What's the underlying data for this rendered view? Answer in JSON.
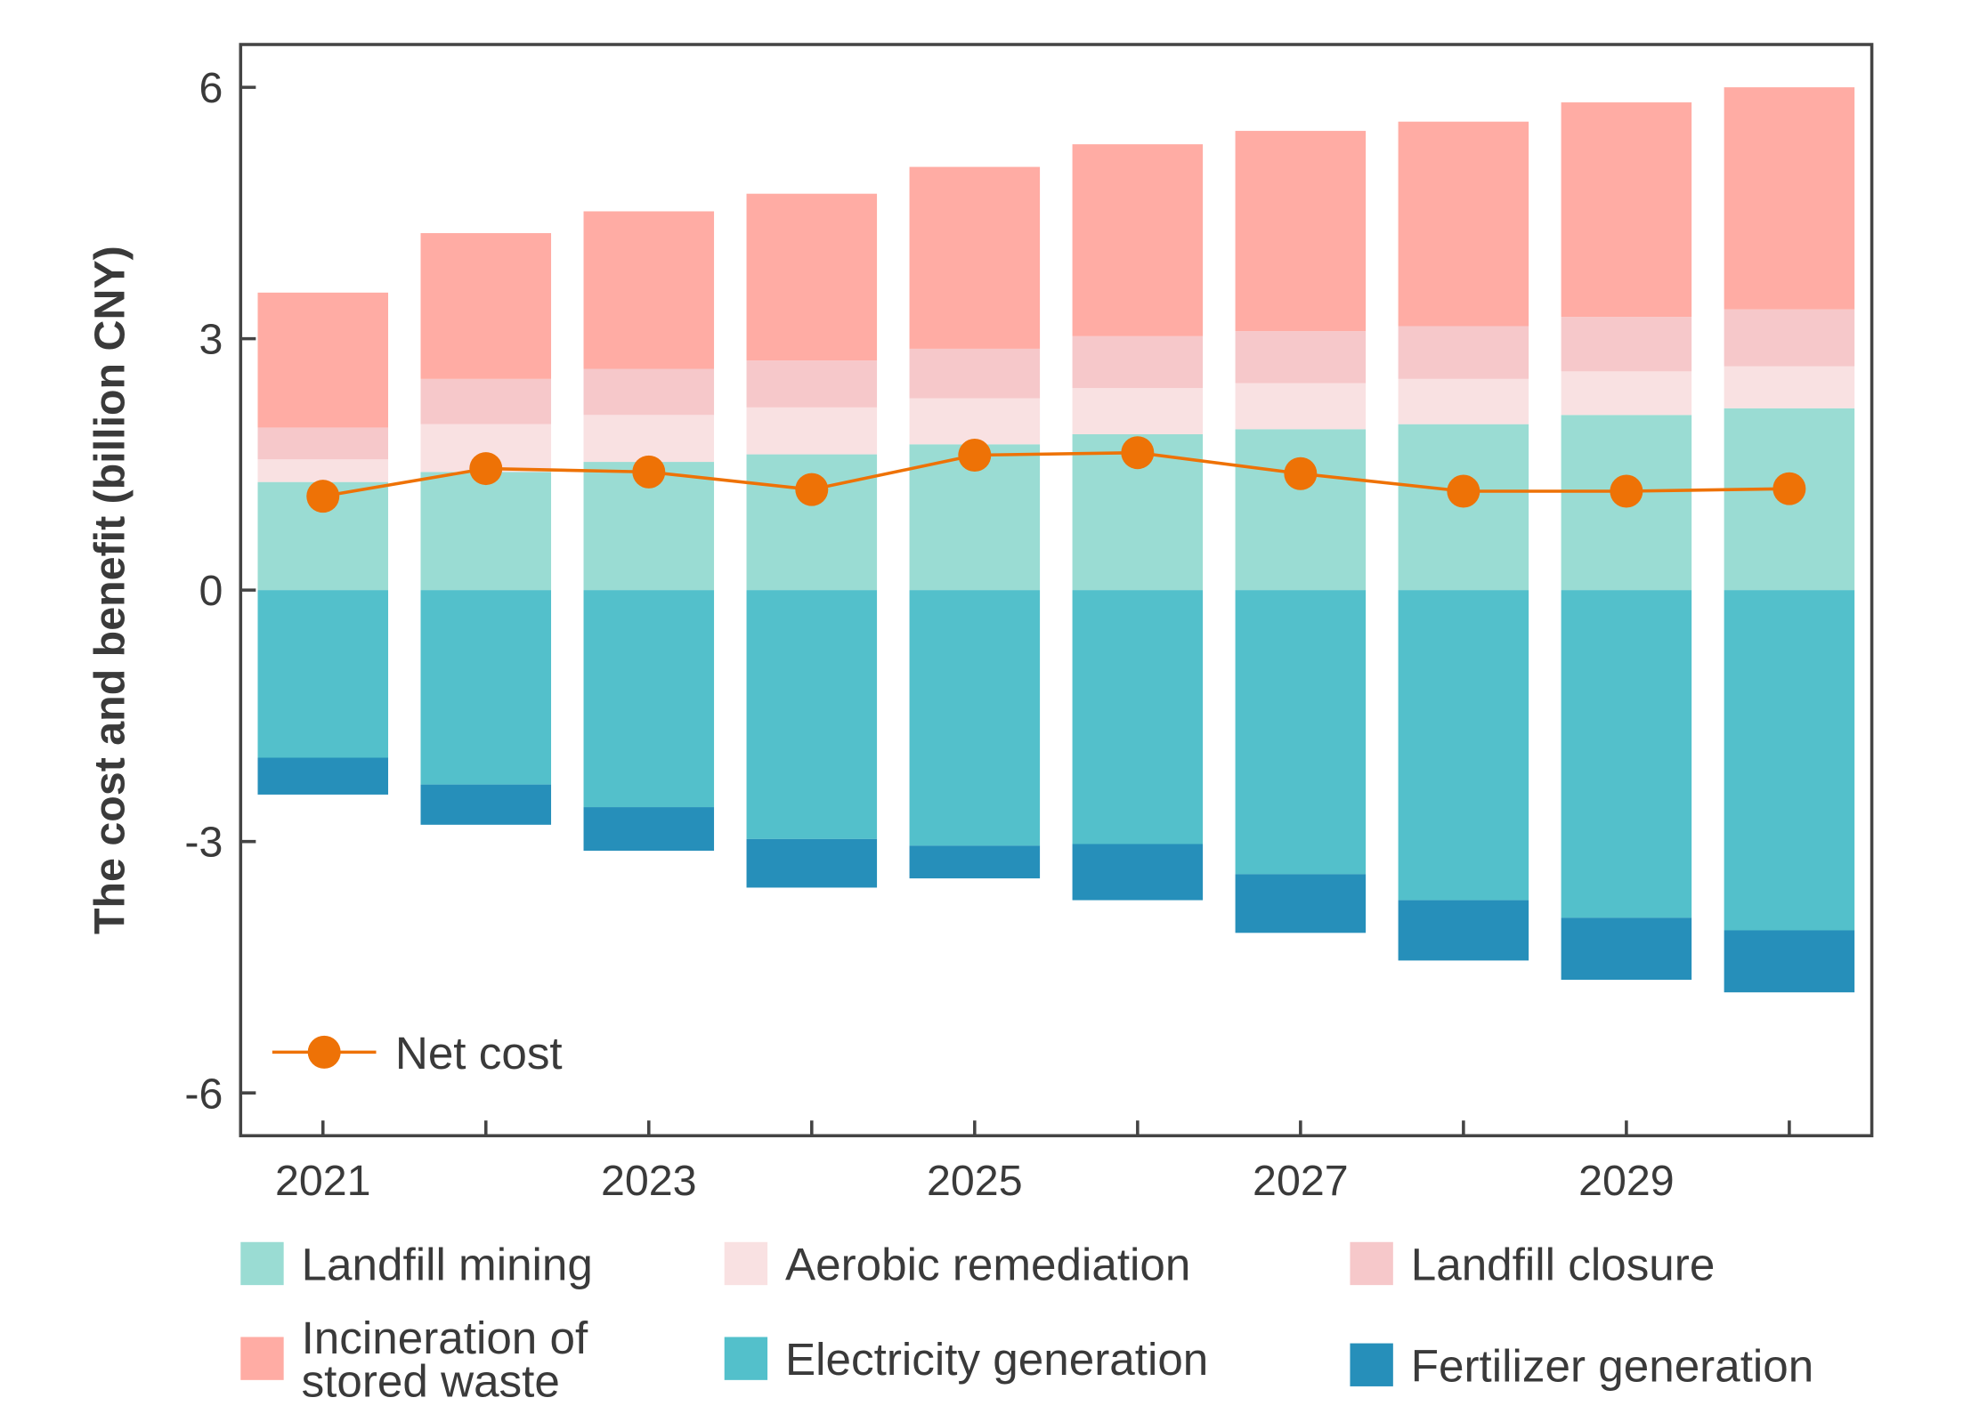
{
  "chart_data": {
    "type": "bar",
    "stacked": true,
    "title": "",
    "xlabel": "",
    "ylabel": "The cost and benefit (billion CNY)",
    "ylim": [
      -6.5,
      6.5
    ],
    "yticks": [
      6,
      3,
      0,
      -3,
      -6
    ],
    "ytick_labels": [
      "6",
      "3",
      "0",
      "-3",
      "-6"
    ],
    "categories": [
      "2021",
      "2022",
      "2023",
      "2024",
      "2025",
      "2026",
      "2027",
      "2028",
      "2029",
      "2030"
    ],
    "xtick_labels": [
      "2021",
      "",
      "2023",
      "",
      "2025",
      "",
      "2027",
      "",
      "2029",
      ""
    ],
    "grid": false,
    "series": [
      {
        "name": "Landfill mining",
        "color": "#9adcd3",
        "values": [
          1.29,
          1.41,
          1.53,
          1.62,
          1.74,
          1.86,
          1.92,
          1.98,
          2.09,
          2.17
        ]
      },
      {
        "name": "Aerobic remediation",
        "color": "#f9e1e2",
        "values": [
          0.27,
          0.57,
          0.56,
          0.56,
          0.55,
          0.55,
          0.55,
          0.54,
          0.52,
          0.5
        ]
      },
      {
        "name": "Landfill closure",
        "color": "#f6c8ca",
        "values": [
          0.38,
          0.54,
          0.55,
          0.56,
          0.59,
          0.62,
          0.62,
          0.63,
          0.65,
          0.68
        ]
      },
      {
        "name": "Incineration of\nstored waste",
        "color": "#ffaca4",
        "values": [
          1.61,
          1.74,
          1.88,
          1.99,
          2.17,
          2.29,
          2.39,
          2.44,
          2.56,
          2.65
        ]
      },
      {
        "name": "Electricity generation",
        "color": "#53c0cb",
        "values": [
          -2.0,
          -2.32,
          -2.59,
          -2.97,
          -3.05,
          -3.03,
          -3.39,
          -3.7,
          -3.91,
          -4.06
        ]
      },
      {
        "name": "Fertilizer generation",
        "color": "#268fba",
        "values": [
          -0.44,
          -0.48,
          -0.52,
          -0.58,
          -0.39,
          -0.67,
          -0.7,
          -0.72,
          -0.74,
          -0.74
        ]
      }
    ],
    "line": {
      "name": "Net cost",
      "color": "#ee7206",
      "values": [
        1.12,
        1.45,
        1.41,
        1.2,
        1.61,
        1.64,
        1.39,
        1.18,
        1.18,
        1.21
      ]
    },
    "legend_placement": "bottom; net cost inside lower-left"
  }
}
